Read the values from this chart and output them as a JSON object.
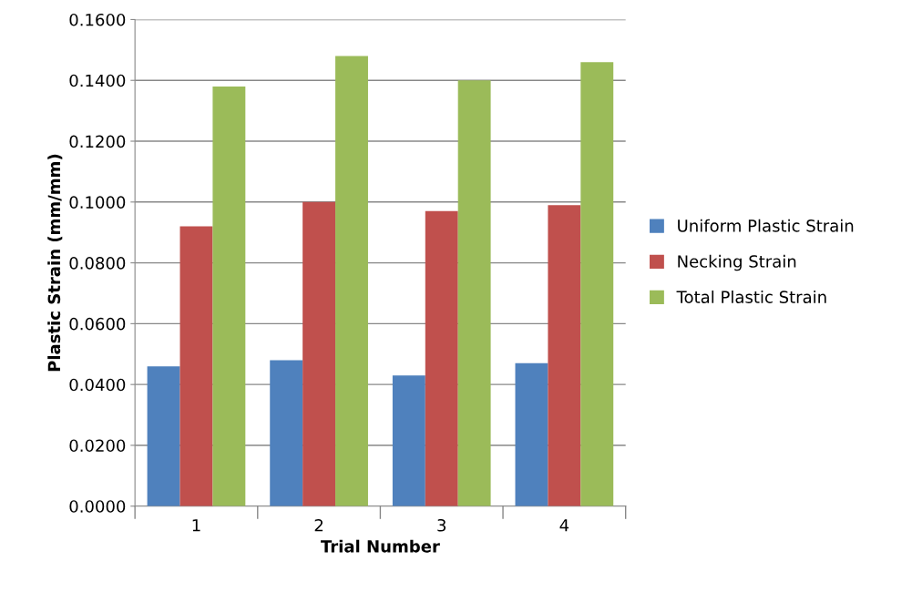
{
  "chart_data": {
    "type": "bar",
    "xlabel": "Trial Number",
    "ylabel": "Plastic Strain (mm/mm)",
    "categories": [
      "1",
      "2",
      "3",
      "4"
    ],
    "series": [
      {
        "name": "Uniform Plastic Strain",
        "color": "#4f81bd",
        "values": [
          0.046,
          0.048,
          0.043,
          0.047
        ]
      },
      {
        "name": "Necking Strain",
        "color": "#c0504d",
        "values": [
          0.092,
          0.1,
          0.097,
          0.099
        ]
      },
      {
        "name": "Total Plastic Strain",
        "color": "#9bbb59",
        "values": [
          0.138,
          0.148,
          0.14,
          0.146
        ]
      }
    ],
    "ylim": [
      0,
      0.16
    ],
    "yticks": [
      {
        "value": 0,
        "label": "0.0000"
      },
      {
        "value": 0.02,
        "label": "0.0200"
      },
      {
        "value": 0.04,
        "label": "0.0400"
      },
      {
        "value": 0.06,
        "label": "0.0600"
      },
      {
        "value": 0.08,
        "label": "0.0800"
      },
      {
        "value": 0.1,
        "label": "0.1000"
      },
      {
        "value": 0.12,
        "label": "0.1200"
      },
      {
        "value": 0.14,
        "label": "0.1400"
      },
      {
        "value": 0.16,
        "label": "0.1600"
      }
    ],
    "grid": "y",
    "legend": "right"
  }
}
